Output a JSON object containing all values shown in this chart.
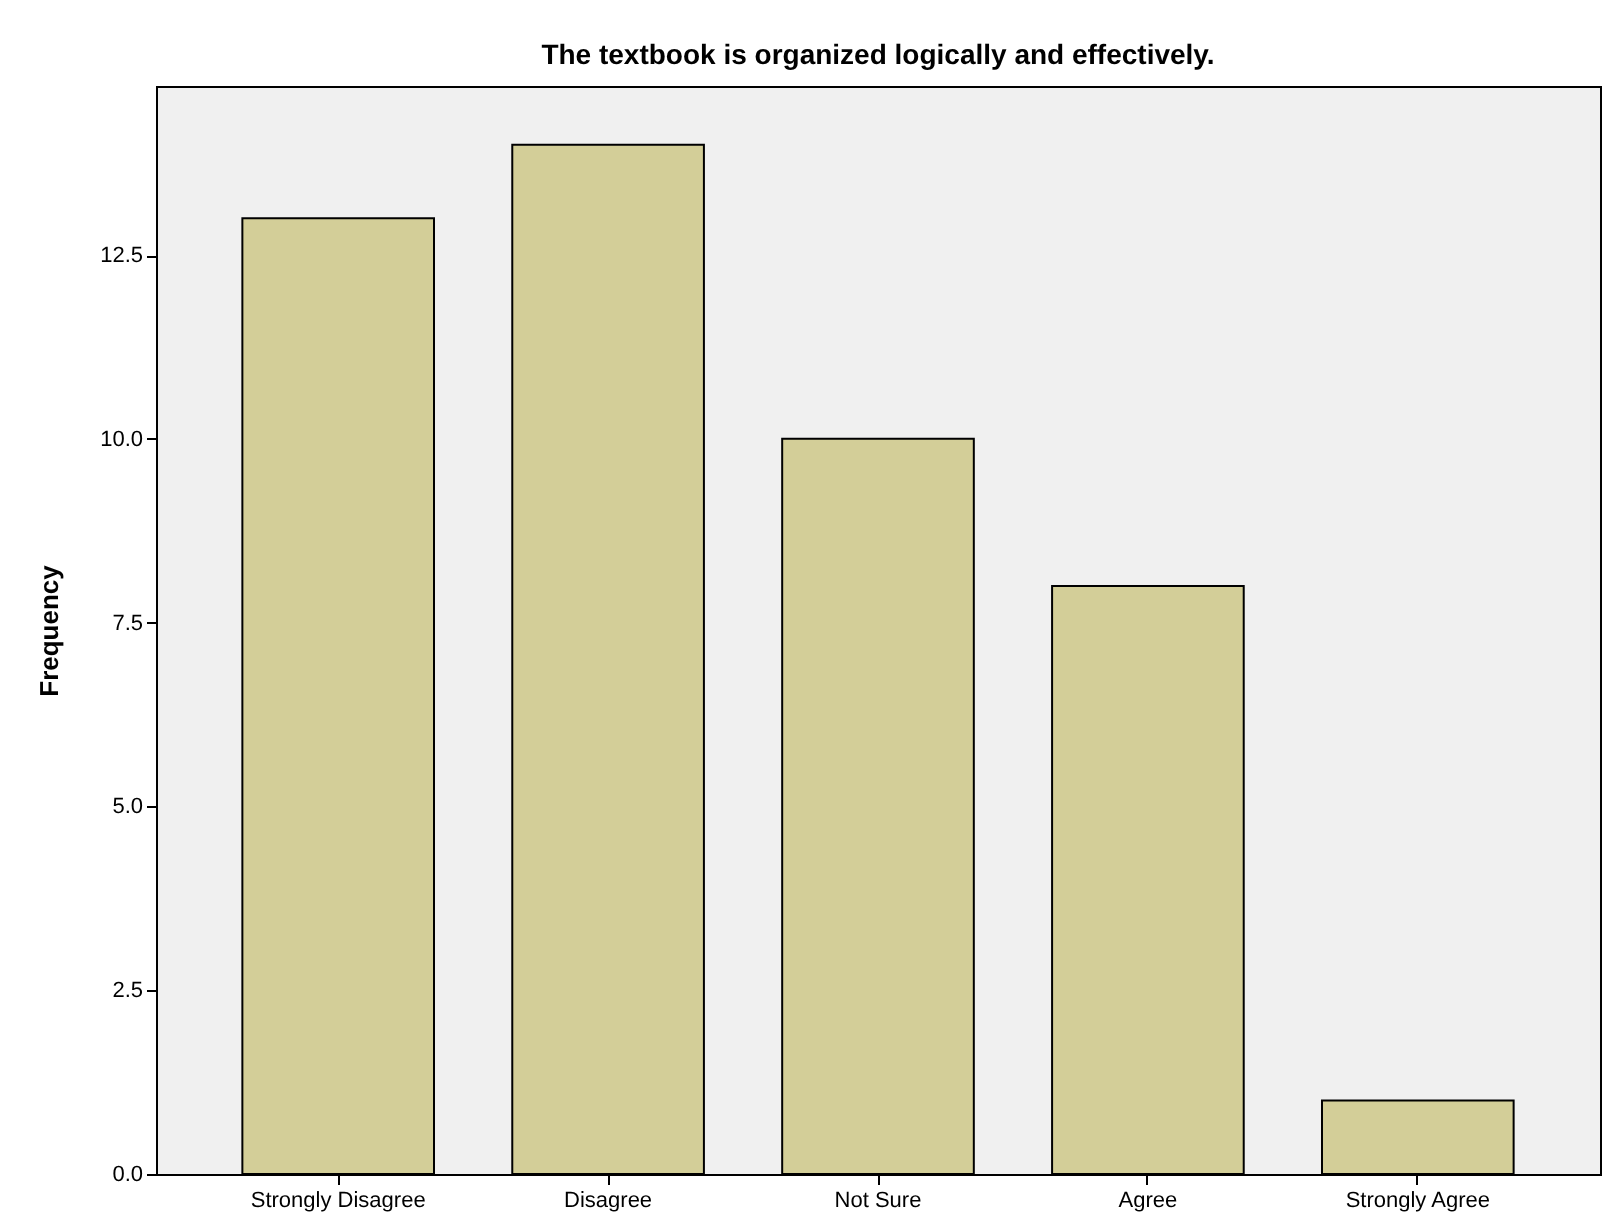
{
  "chart_data": {
    "type": "bar",
    "title": "The textbook is organized logically and effectively.",
    "ylabel": "Frequency",
    "categories": [
      "Strongly Disagree",
      "Disagree",
      "Not Sure",
      "Agree",
      "Strongly Agree"
    ],
    "values": [
      13,
      14,
      10,
      8,
      1
    ],
    "color": "#d3ce98",
    "ylim": [
      0,
      14.8
    ],
    "yticks": [
      {
        "value": 0,
        "label": "0.0"
      },
      {
        "value": 2.5,
        "label": "2.5"
      },
      {
        "value": 5,
        "label": "5.0"
      },
      {
        "value": 7.5,
        "label": "7.5"
      },
      {
        "value": 10,
        "label": "10.0"
      },
      {
        "value": 12.5,
        "label": "12.5"
      }
    ],
    "grid": false
  }
}
